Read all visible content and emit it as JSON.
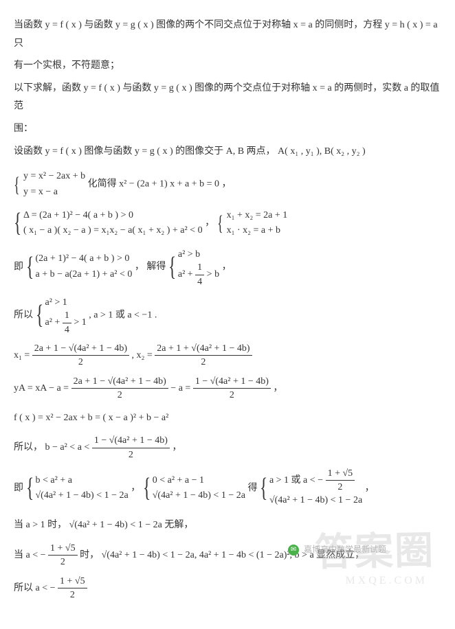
{
  "lines": {
    "l1a": "当函数 y = f ( x ) 与函数 y = g ( x ) 图像的两个不同交点位于对称轴 x = a 的同侧时，方程 y = h ( x ) = a 只",
    "l1b": "有一个实根，不符题意；",
    "l2a": "以下求解，函数 y = f ( x ) 与函数 y = g ( x ) 图像的两个交点位于对称轴 x = a 的两侧时，实数 a 的取值范",
    "l2b": "围：",
    "l3": "设函数 y = f ( x ) 图像与函数 y = g ( x ) 的图像交于 A, B 两点，  A( x₁ , y₁ ), B( x₂ , y₂ )",
    "sys1_r1": "y = x² − 2ax + b",
    "sys1_r2": "y = x − a",
    "sys1_tail": " 化简得 x² − (2a + 1) x + a + b = 0 ，",
    "sys2_r1": "Δ = (2a + 1)² − 4( a + b ) > 0",
    "sys2_r2": "( x₁ − a )( x₂ − a ) = x₁x₂ − a( x₁ + x₂ ) + a² < 0",
    "sys2b_r1": "x₁ + x₂ = 2a + 1",
    "sys2b_r2": "x₁ · x₂ = a + b",
    "sys3_r1": "(2a + 1)² − 4( a + b ) > 0",
    "sys3_r2": "a + b − a(2a + 1) + a² < 0",
    "sys3b_r1": "a² > b",
    "sys3b_r2_left": "a² + ",
    "sys3b_r2_num": "1",
    "sys3b_r2_den": "4",
    "sys3b_r2_right": " > b",
    "so_prefix": "所以 ",
    "sys4_r1": "a² > 1",
    "sys4_r2_left": "a² + ",
    "sys4_r2_num": "1",
    "sys4_r2_den": "4",
    "sys4_r2_right": " > 1",
    "sys4_tail": ", a > 1 或 a < −1 .",
    "x1_lhs": "x₁ = ",
    "x1_num": "2a + 1 − √(4a² + 1 − 4b)",
    "x1_den": "2",
    "x2_mid": " , x₂ = ",
    "x2_num": "2a + 1 + √(4a² + 1 − 4b)",
    "x2_den": "2",
    "yA_lhs": "yA = xA − a = ",
    "yA_num1": "2a + 1 − √(4a² + 1 − 4b)",
    "yA_den1": "2",
    "yA_mid": " − a = ",
    "yA_num2": "1 − √(4a² + 1 − 4b)",
    "yA_den2": "2",
    "yA_tail": " ，",
    "fx": "f ( x ) = x² − 2ax + b = ( x − a )² + b − a²",
    "so2_pre": "所以， b − a² < a < ",
    "so2_num": "1 − √(4a² + 1 − 4b)",
    "so2_den": "2",
    "so2_tail": " ，",
    "ji": "即 ",
    "sys5_r1": "b < a² + a",
    "sys5_r2": "√(4a² + 1 − 4b) < 1 − 2a",
    "sys5b_r1": "0 < a² + a − 1",
    "sys5b_r2": "√(4a² + 1 − 4b) < 1 − 2a",
    "de": " 得 ",
    "sys5c_r1_left": "a > 1 或 a < − ",
    "sys5c_r1_num": "1 + √5",
    "sys5c_r1_den": "2",
    "sys5c_r2": "√(4a² + 1 − 4b) < 1 − 2a",
    "comma": " ，",
    "case1": "当 a > 1 时， √(4a² + 1 − 4b) < 1 − 2a 无解，",
    "case2_pre": "当 a < − ",
    "case2_num": "1 + √5",
    "case2_den": "2",
    "case2_post": " 时， √(4a² + 1 − 4b) < 1 − 2a, 4a² + 1 − 4b < (1 − 2a)², b > a 显然成立，",
    "final_pre": "所以 a < − ",
    "final_num": "1 + √5",
    "final_den": "2"
  },
  "overlay": {
    "watermark": "答案圈",
    "wm_sub": "MXQE.COM",
    "source": "嘉博高中数学最新试题"
  }
}
